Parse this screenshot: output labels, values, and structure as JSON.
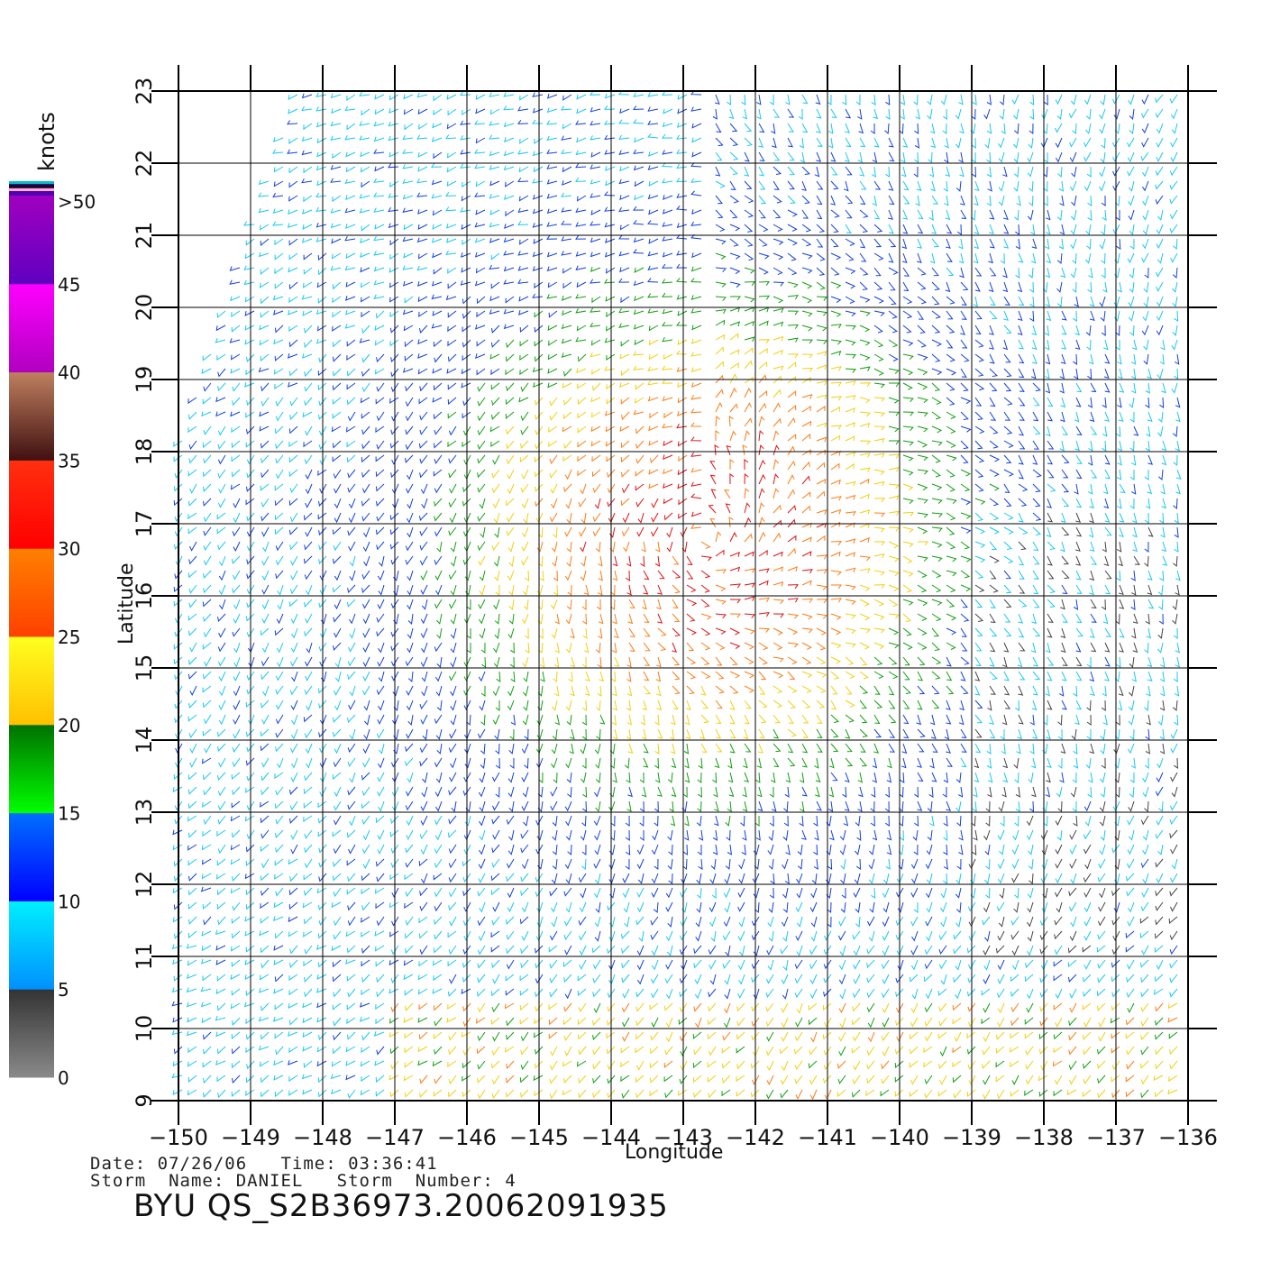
{
  "map": {
    "lon_range": [
      -150,
      -136
    ],
    "lat_range": [
      9,
      23
    ],
    "lon_ticks": [
      -150,
      -149,
      -148,
      -147,
      -146,
      -145,
      -144,
      -143,
      -142,
      -141,
      -140,
      -139,
      -138,
      -137,
      -136
    ],
    "lat_ticks": [
      9,
      10,
      11,
      12,
      13,
      14,
      15,
      16,
      17,
      18,
      19,
      20,
      21,
      22,
      23
    ],
    "xlabel": "Longitude",
    "ylabel": "Latitude",
    "storm_center": {
      "lon": -142.7,
      "lat": 16.8
    },
    "vector_field": "wind barbs (scatterometer swath)"
  },
  "colorbar": {
    "unit_label": "knots",
    "bins": [
      {
        "label": "0",
        "from": 0,
        "to": 5,
        "color_top": "#333333",
        "color_bottom": "#8a8a8a"
      },
      {
        "label": "5",
        "from": 5,
        "to": 10,
        "color_top": "#00f0ff",
        "color_bottom": "#0090ff"
      },
      {
        "label": "10",
        "from": 10,
        "to": 15,
        "color_top": "#0070ff",
        "color_bottom": "#0000ff"
      },
      {
        "label": "15",
        "from": 15,
        "to": 20,
        "color_top": "#007000",
        "color_bottom": "#00ff00"
      },
      {
        "label": "20",
        "from": 20,
        "to": 25,
        "color_top": "#ffff20",
        "color_bottom": "#ffc000"
      },
      {
        "label": "25",
        "from": 25,
        "to": 30,
        "color_top": "#ff8000",
        "color_bottom": "#ff4000"
      },
      {
        "label": "30",
        "from": 30,
        "to": 35,
        "color_top": "#ff3010",
        "color_bottom": "#ff0000"
      },
      {
        "label": "35",
        "from": 35,
        "to": 40,
        "color_top": "#c08060",
        "color_bottom": "#401010"
      },
      {
        "label": "40",
        "from": 40,
        "to": 45,
        "color_top": "#ff00ff",
        "color_bottom": "#b000c0"
      },
      {
        "label": "45",
        "from": 45,
        "to": 50,
        "color_top": "#a000c0",
        "color_bottom": "#6000c0"
      },
      {
        "label": ">50",
        "from": 50,
        "to": null,
        "color_top": "#5000b0",
        "color_bottom": "#5000b0"
      }
    ]
  },
  "footer": {
    "date_line": "Date: 07/26/06   Time: 03:36:41",
    "storm_line": "Storm  Name: DANIEL   Storm  Number: 4",
    "title": "BYU  QS_S2B36973.20062091935"
  }
}
